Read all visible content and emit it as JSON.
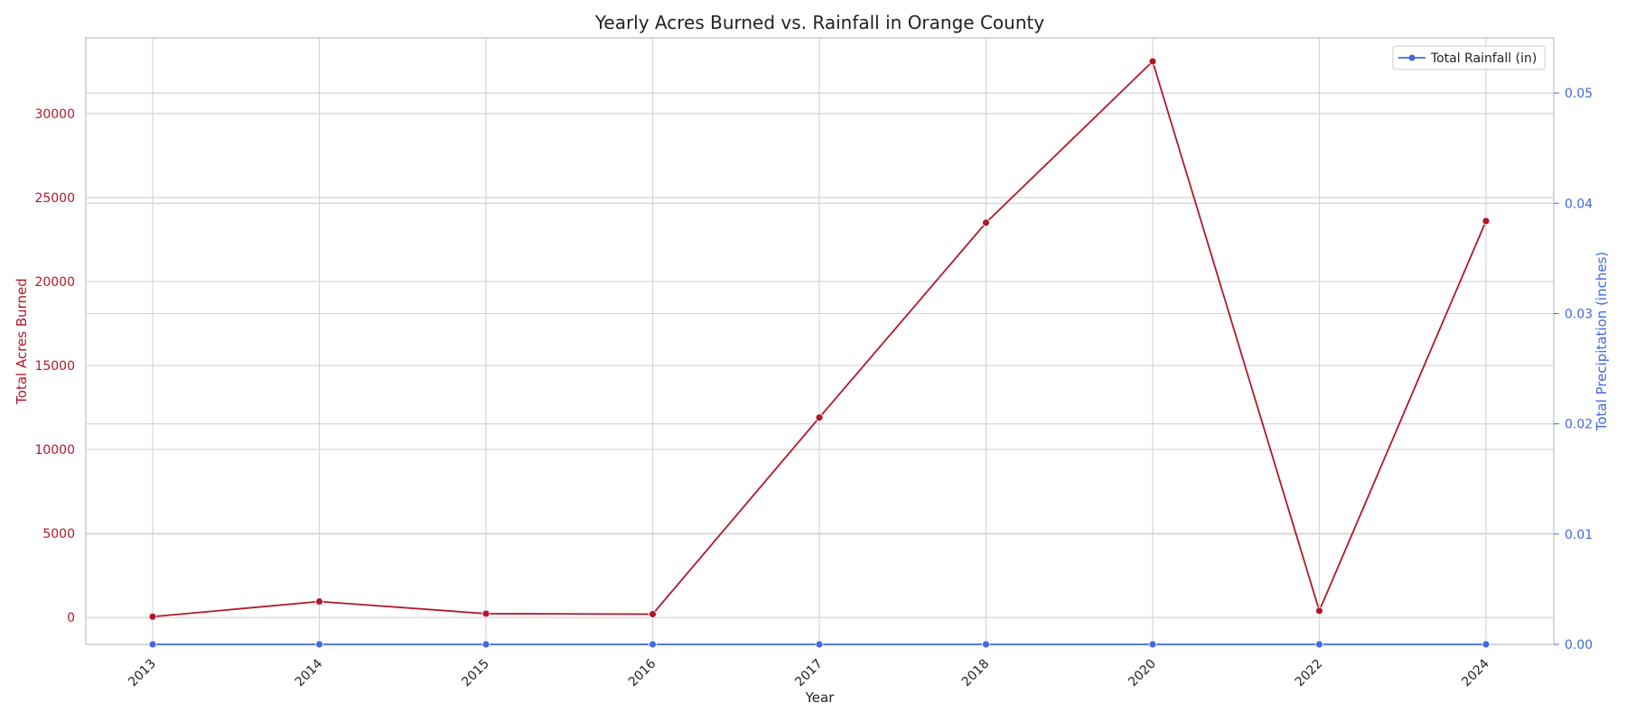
{
  "chart_data": {
    "type": "line",
    "title": "Yearly Acres Burned vs. Rainfall in Orange County",
    "xlabel": "Year",
    "categories": [
      "2013",
      "2014",
      "2015",
      "2016",
      "2017",
      "2018",
      "2020",
      "2022",
      "2024"
    ],
    "y_left": {
      "label": "Total Acres Burned",
      "ticks": [
        "0",
        "5000",
        "10000",
        "15000",
        "20000",
        "25000",
        "30000"
      ],
      "lim": [
        -1600,
        34500
      ],
      "color": "#b2182b"
    },
    "y_right": {
      "label": "Total Precipitation (inches)",
      "ticks": [
        "0.00",
        "0.01",
        "0.02",
        "0.03",
        "0.04",
        "0.05"
      ],
      "lim": [
        0,
        0.055
      ],
      "color": "#4169e1"
    },
    "series": [
      {
        "axis": "left",
        "color": "#b2182b",
        "values": [
          50,
          950,
          230,
          200,
          11900,
          23500,
          33100,
          400,
          23600
        ]
      },
      {
        "name": "Total Rainfall (in)",
        "axis": "right",
        "color": "#4169e1",
        "values": [
          0,
          0,
          0,
          0,
          0,
          0,
          0,
          0,
          0
        ]
      }
    ],
    "legend": {
      "position": "top-right"
    },
    "grid": true
  }
}
